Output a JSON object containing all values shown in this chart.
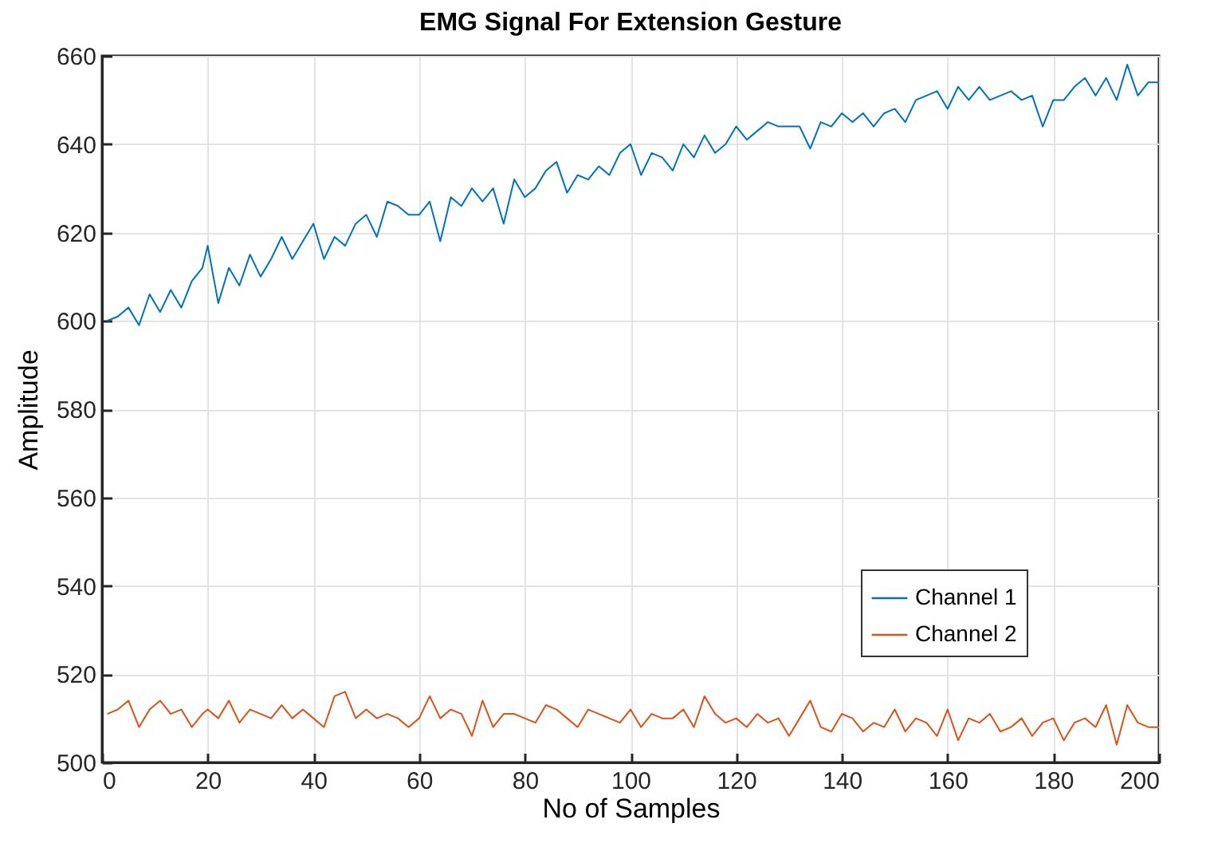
{
  "chart_data": {
    "type": "line",
    "title": "EMG Signal For Extension Gesture",
    "xlabel": "No of Samples",
    "ylabel": "Amplitude",
    "x": [
      1,
      3,
      5,
      7,
      9,
      11,
      13,
      15,
      17,
      19,
      20,
      22,
      24,
      26,
      28,
      30,
      32,
      34,
      36,
      38,
      40,
      42,
      44,
      46,
      48,
      50,
      52,
      54,
      56,
      58,
      60,
      62,
      64,
      66,
      68,
      70,
      72,
      74,
      76,
      78,
      80,
      82,
      84,
      86,
      88,
      90,
      92,
      94,
      96,
      98,
      100,
      102,
      104,
      106,
      108,
      110,
      112,
      114,
      116,
      118,
      120,
      122,
      124,
      126,
      128,
      130,
      132,
      134,
      136,
      138,
      140,
      142,
      144,
      146,
      148,
      150,
      152,
      154,
      156,
      158,
      160,
      162,
      164,
      166,
      168,
      170,
      172,
      174,
      176,
      178,
      180,
      182,
      184,
      186,
      188,
      190,
      192,
      194,
      196,
      198,
      200
    ],
    "series": [
      {
        "name": "Channel 1",
        "color": "#0072bd",
        "values": [
          600,
          601,
          603,
          599,
          606,
          602,
          607,
          603,
          609,
          612,
          617,
          604,
          612,
          608,
          615,
          610,
          614,
          619,
          614,
          618,
          622,
          614,
          619,
          617,
          622,
          624,
          619,
          627,
          626,
          624,
          624,
          627,
          618,
          628,
          626,
          630,
          627,
          630,
          622,
          632,
          628,
          630,
          634,
          636,
          629,
          633,
          632,
          635,
          633,
          638,
          640,
          633,
          638,
          637,
          634,
          640,
          637,
          642,
          638,
          640,
          644,
          641,
          643,
          645,
          644,
          644,
          644,
          639,
          645,
          644,
          647,
          645,
          647,
          644,
          647,
          648,
          645,
          650,
          651,
          652,
          648,
          653,
          650,
          653,
          650,
          651,
          652,
          650,
          651,
          644,
          650,
          650,
          653,
          655,
          651,
          655,
          650,
          658,
          651,
          654,
          654
        ]
      },
      {
        "name": "Channel 2",
        "color": "#d95319",
        "values": [
          511,
          512,
          514,
          508,
          512,
          514,
          511,
          512,
          508,
          511,
          512,
          510,
          514,
          509,
          512,
          511,
          510,
          513,
          510,
          512,
          510,
          508,
          515,
          516,
          510,
          512,
          510,
          511,
          510,
          508,
          510,
          515,
          510,
          512,
          511,
          506,
          514,
          508,
          511,
          511,
          510,
          509,
          513,
          512,
          510,
          508,
          512,
          511,
          510,
          509,
          512,
          508,
          511,
          510,
          510,
          512,
          508,
          515,
          511,
          509,
          510,
          508,
          511,
          509,
          510,
          506,
          510,
          514,
          508,
          507,
          511,
          510,
          507,
          509,
          508,
          512,
          507,
          510,
          509,
          506,
          512,
          505,
          510,
          509,
          511,
          507,
          508,
          510,
          506,
          509,
          510,
          505,
          509,
          510,
          508,
          513,
          504,
          513,
          509,
          508,
          508
        ]
      }
    ],
    "xlim": [
      0,
      200
    ],
    "xticks": [
      0,
      20,
      40,
      60,
      80,
      100,
      120,
      140,
      160,
      180,
      200
    ],
    "ylim": [
      500,
      660
    ],
    "yticks": [
      500,
      520,
      540,
      560,
      580,
      600,
      620,
      640,
      660
    ],
    "grid": true,
    "legend": "bottom right"
  }
}
